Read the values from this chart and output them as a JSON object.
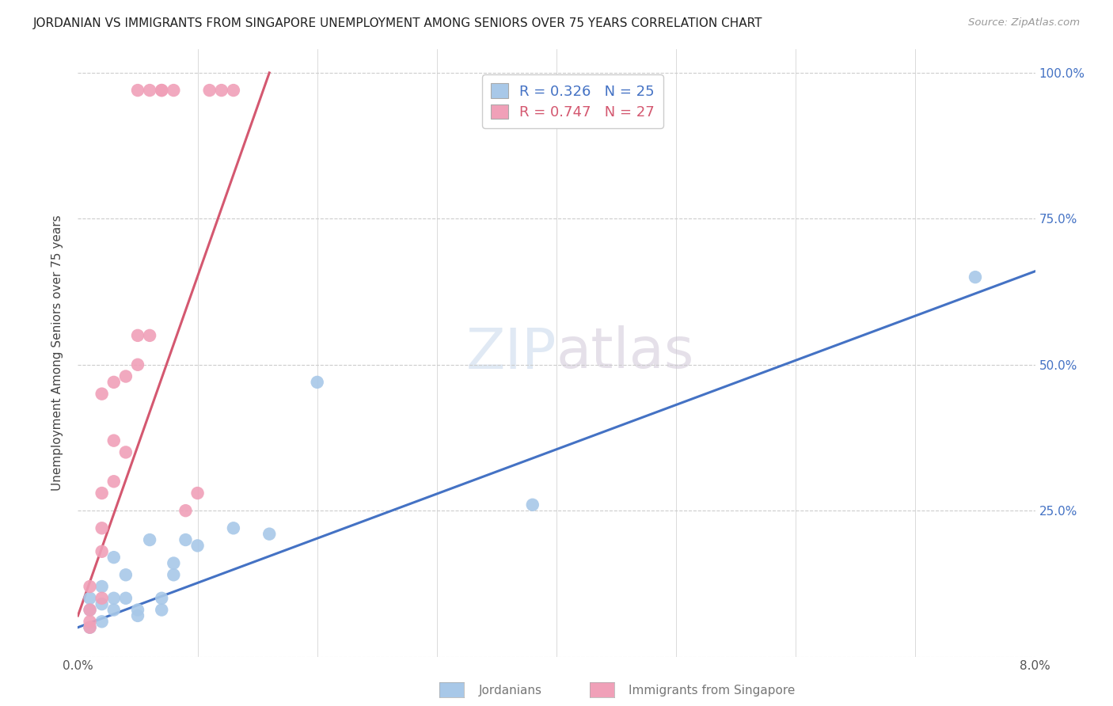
{
  "title": "JORDANIAN VS IMMIGRANTS FROM SINGAPORE UNEMPLOYMENT AMONG SENIORS OVER 75 YEARS CORRELATION CHART",
  "source": "Source: ZipAtlas.com",
  "ylabel": "Unemployment Among Seniors over 75 years",
  "blue_R": 0.326,
  "blue_N": 25,
  "pink_R": 0.747,
  "pink_N": 27,
  "blue_color": "#a8c8e8",
  "pink_color": "#f0a0b8",
  "blue_line_color": "#4472c4",
  "pink_line_color": "#d45870",
  "blue_x": [
    0.001,
    0.001,
    0.001,
    0.002,
    0.002,
    0.002,
    0.003,
    0.003,
    0.003,
    0.004,
    0.004,
    0.005,
    0.005,
    0.006,
    0.007,
    0.007,
    0.008,
    0.008,
    0.009,
    0.01,
    0.013,
    0.016,
    0.02,
    0.038,
    0.075
  ],
  "blue_y": [
    0.05,
    0.08,
    0.1,
    0.06,
    0.09,
    0.12,
    0.08,
    0.1,
    0.17,
    0.1,
    0.14,
    0.07,
    0.08,
    0.2,
    0.08,
    0.1,
    0.14,
    0.16,
    0.2,
    0.19,
    0.22,
    0.21,
    0.47,
    0.26,
    0.65
  ],
  "pink_x": [
    0.001,
    0.001,
    0.001,
    0.001,
    0.002,
    0.002,
    0.002,
    0.002,
    0.002,
    0.003,
    0.003,
    0.003,
    0.004,
    0.004,
    0.005,
    0.005,
    0.005,
    0.006,
    0.006,
    0.007,
    0.007,
    0.008,
    0.009,
    0.01,
    0.011,
    0.012,
    0.013
  ],
  "pink_y": [
    0.05,
    0.06,
    0.08,
    0.12,
    0.1,
    0.18,
    0.22,
    0.28,
    0.45,
    0.3,
    0.37,
    0.47,
    0.35,
    0.48,
    0.5,
    0.55,
    0.97,
    0.55,
    0.97,
    0.97,
    0.97,
    0.97,
    0.25,
    0.28,
    0.97,
    0.97,
    0.97
  ],
  "xlim": [
    0.0,
    0.08
  ],
  "ylim": [
    0.0,
    1.04
  ],
  "blue_line_x": [
    0.0,
    0.08
  ],
  "blue_line_y": [
    0.05,
    0.66
  ],
  "pink_line_x": [
    0.0,
    0.016
  ],
  "pink_line_y": [
    0.07,
    1.0
  ]
}
